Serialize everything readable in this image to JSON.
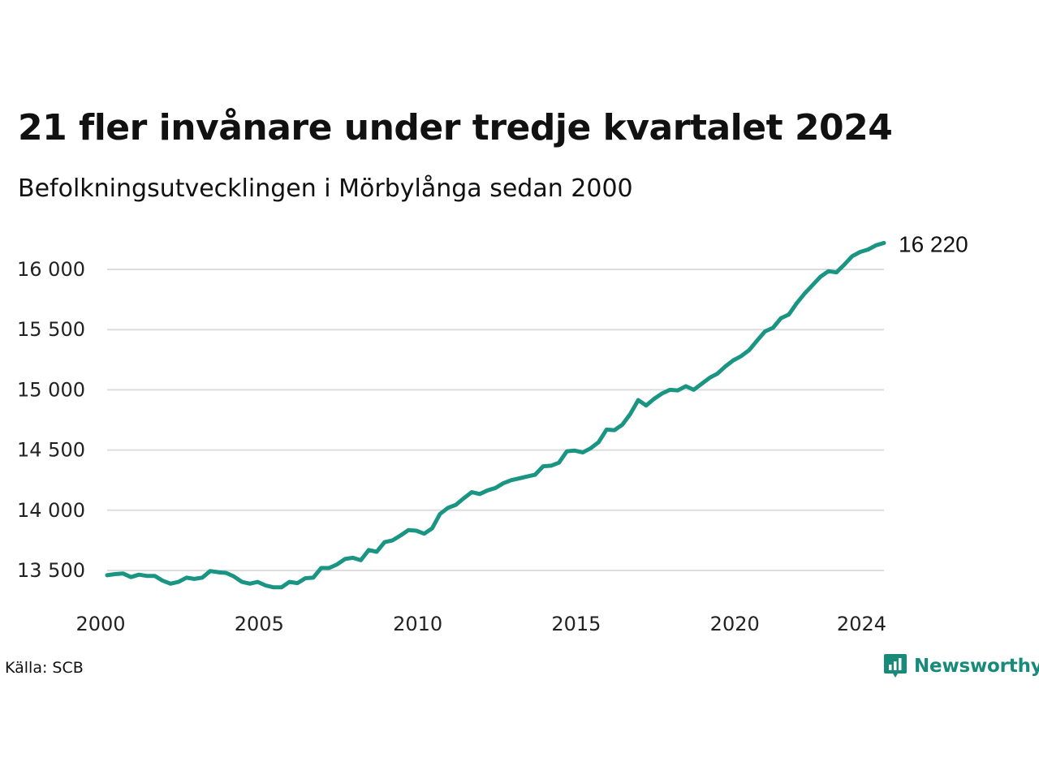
{
  "header": {
    "title": "21 fler invånare under tredje kvartalet 2024",
    "subtitle": "Befolkningsutvecklingen i Mörbylånga sedan 2000"
  },
  "footer": {
    "source": "Källa: SCB",
    "brand": "Newsworthy",
    "brand_icon": "newsworthy-logo-icon"
  },
  "colors": {
    "line": "#1a9583",
    "grid": "#dddddd",
    "brand": "#178a7a"
  },
  "chart_data": {
    "type": "line",
    "title": "21 fler invånare under tredje kvartalet 2024",
    "subtitle": "Befolkningsutvecklingen i Mörbylånga sedan 2000",
    "xlabel": "",
    "ylabel": "",
    "xlim": [
      2000,
      2024.5
    ],
    "ylim": [
      13200,
      16350
    ],
    "grid": "horizontal",
    "y_ticks": [
      13500,
      14000,
      14500,
      15000,
      15500,
      16000
    ],
    "y_tick_labels": [
      "13 500",
      "14 000",
      "14 500",
      "15 000",
      "15 500",
      "16 000"
    ],
    "x_ticks": [
      2000,
      2005,
      2010,
      2015,
      2020,
      2024
    ],
    "x_tick_labels": [
      "2000",
      "2005",
      "2010",
      "2015",
      "2020",
      "2024"
    ],
    "end_label": "16 220",
    "series": [
      {
        "values": [
          [
            2000.0,
            13460
          ],
          [
            2000.25,
            13470
          ],
          [
            2000.5,
            13475
          ],
          [
            2000.75,
            13445
          ],
          [
            2001.0,
            13465
          ],
          [
            2001.25,
            13455
          ],
          [
            2001.5,
            13455
          ],
          [
            2001.75,
            13415
          ],
          [
            2002.0,
            13390
          ],
          [
            2002.25,
            13405
          ],
          [
            2002.5,
            13440
          ],
          [
            2002.75,
            13430
          ],
          [
            2003.0,
            13440
          ],
          [
            2003.25,
            13495
          ],
          [
            2003.5,
            13485
          ],
          [
            2003.75,
            13480
          ],
          [
            2004.0,
            13450
          ],
          [
            2004.25,
            13405
          ],
          [
            2004.5,
            13390
          ],
          [
            2004.75,
            13405
          ],
          [
            2005.0,
            13375
          ],
          [
            2005.25,
            13360
          ],
          [
            2005.5,
            13360
          ],
          [
            2005.75,
            13405
          ],
          [
            2006.0,
            13395
          ],
          [
            2006.25,
            13435
          ],
          [
            2006.5,
            13440
          ],
          [
            2006.75,
            13520
          ],
          [
            2007.0,
            13520
          ],
          [
            2007.25,
            13550
          ],
          [
            2007.5,
            13595
          ],
          [
            2007.75,
            13605
          ],
          [
            2008.0,
            13585
          ],
          [
            2008.25,
            13670
          ],
          [
            2008.5,
            13655
          ],
          [
            2008.75,
            13735
          ],
          [
            2009.0,
            13750
          ],
          [
            2009.25,
            13790
          ],
          [
            2009.5,
            13835
          ],
          [
            2009.75,
            13830
          ],
          [
            2010.0,
            13805
          ],
          [
            2010.25,
            13850
          ],
          [
            2010.5,
            13970
          ],
          [
            2010.75,
            14020
          ],
          [
            2011.0,
            14045
          ],
          [
            2011.25,
            14100
          ],
          [
            2011.5,
            14150
          ],
          [
            2011.75,
            14135
          ],
          [
            2012.0,
            14165
          ],
          [
            2012.25,
            14185
          ],
          [
            2012.5,
            14225
          ],
          [
            2012.75,
            14250
          ],
          [
            2013.0,
            14265
          ],
          [
            2013.25,
            14280
          ],
          [
            2013.5,
            14295
          ],
          [
            2013.75,
            14365
          ],
          [
            2014.0,
            14370
          ],
          [
            2014.25,
            14395
          ],
          [
            2014.5,
            14490
          ],
          [
            2014.75,
            14495
          ],
          [
            2015.0,
            14480
          ],
          [
            2015.25,
            14515
          ],
          [
            2015.5,
            14565
          ],
          [
            2015.75,
            14670
          ],
          [
            2016.0,
            14665
          ],
          [
            2016.25,
            14710
          ],
          [
            2016.5,
            14800
          ],
          [
            2016.75,
            14915
          ],
          [
            2017.0,
            14870
          ],
          [
            2017.25,
            14925
          ],
          [
            2017.5,
            14970
          ],
          [
            2017.75,
            15000
          ],
          [
            2018.0,
            14995
          ],
          [
            2018.25,
            15030
          ],
          [
            2018.5,
            15000
          ],
          [
            2018.75,
            15050
          ],
          [
            2019.0,
            15100
          ],
          [
            2019.25,
            15135
          ],
          [
            2019.5,
            15195
          ],
          [
            2019.75,
            15245
          ],
          [
            2020.0,
            15280
          ],
          [
            2020.25,
            15330
          ],
          [
            2020.5,
            15410
          ],
          [
            2020.75,
            15485
          ],
          [
            2021.0,
            15515
          ],
          [
            2021.25,
            15595
          ],
          [
            2021.5,
            15625
          ],
          [
            2021.75,
            15720
          ],
          [
            2022.0,
            15800
          ],
          [
            2022.25,
            15870
          ],
          [
            2022.5,
            15940
          ],
          [
            2022.75,
            15985
          ],
          [
            2023.0,
            15975
          ],
          [
            2023.25,
            16040
          ],
          [
            2023.5,
            16110
          ],
          [
            2023.75,
            16145
          ],
          [
            2024.0,
            16165
          ],
          [
            2024.25,
            16200
          ],
          [
            2024.5,
            16220
          ]
        ]
      }
    ]
  }
}
